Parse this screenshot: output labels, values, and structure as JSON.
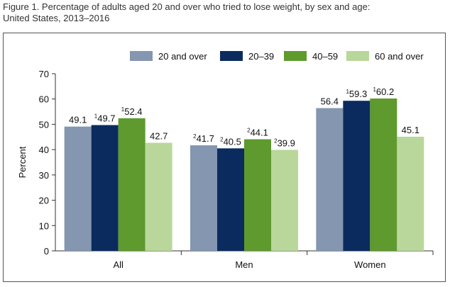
{
  "figure": {
    "title_line1": "Figure 1. Percentage of adults aged 20 and over who tried to lose weight, by sex and age:",
    "title_line2": "United States, 2013–2016"
  },
  "chart_data": {
    "type": "bar",
    "title": "",
    "xlabel": "",
    "ylabel": "Percent",
    "ylim": [
      0,
      70
    ],
    "yticks": [
      0,
      10,
      20,
      30,
      40,
      50,
      60,
      70
    ],
    "categories": [
      "All",
      "Men",
      "Women"
    ],
    "legend_position": "top",
    "grid": false,
    "series": [
      {
        "name": "20 and over",
        "color": "#8496B0",
        "values": [
          49.1,
          41.7,
          56.4
        ],
        "labels": [
          "49.1",
          "41.7",
          "56.4"
        ],
        "superscripts": [
          "",
          "2",
          ""
        ]
      },
      {
        "name": "20–39",
        "color": "#0B2B5F",
        "values": [
          49.7,
          40.5,
          59.3
        ],
        "labels": [
          "49.7",
          "40.5",
          "59.3"
        ],
        "superscripts": [
          "1",
          "2",
          "1"
        ]
      },
      {
        "name": "40–59",
        "color": "#5E9A2E",
        "values": [
          52.4,
          44.1,
          60.2
        ],
        "labels": [
          "52.4",
          "44.1",
          "60.2"
        ],
        "superscripts": [
          "1",
          "2",
          "1"
        ]
      },
      {
        "name": "60 and over",
        "color": "#B9D79A",
        "values": [
          42.7,
          39.9,
          45.1
        ],
        "labels": [
          "42.7",
          "39.9",
          "45.1"
        ],
        "superscripts": [
          "",
          "2",
          ""
        ]
      }
    ]
  }
}
